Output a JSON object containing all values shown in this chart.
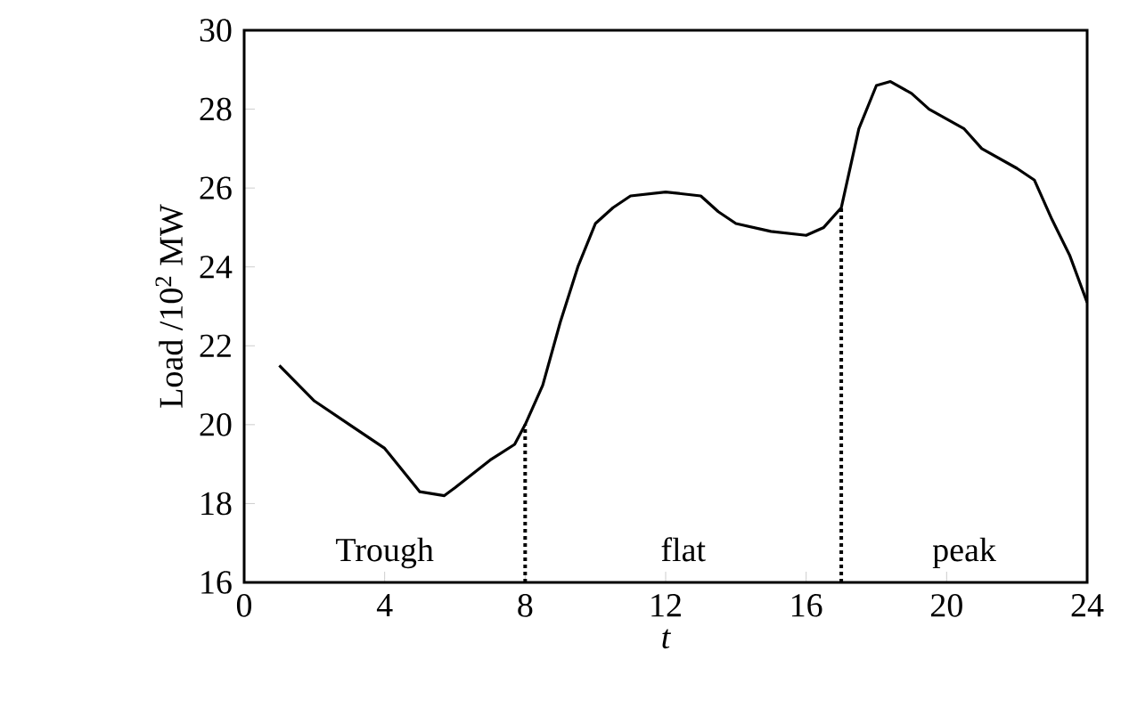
{
  "chart_data": {
    "type": "line",
    "xlabel": "t",
    "ylabel": "Load /10$^{2}$ MW",
    "xlim": [
      0,
      24
    ],
    "ylim": [
      16,
      30
    ],
    "xticks": [
      0,
      4,
      8,
      12,
      16,
      20,
      24
    ],
    "yticks": [
      16,
      18,
      20,
      22,
      24,
      26,
      28,
      30
    ],
    "x": [
      1,
      2,
      3,
      4,
      5,
      5.7,
      6,
      7,
      7.7,
      8,
      8.5,
      9,
      9.5,
      10,
      10.5,
      11,
      12,
      13,
      13.5,
      14,
      15,
      16,
      16.5,
      17,
      17.5,
      18,
      18.4,
      19,
      19.5,
      20.5,
      21,
      22,
      22.5,
      23,
      23.5,
      24
    ],
    "series": [
      {
        "color": "#000000",
        "values": [
          21.5,
          20.6,
          20.0,
          19.4,
          18.3,
          18.2,
          18.4,
          19.1,
          19.5,
          20.0,
          21.0,
          22.6,
          24.0,
          25.1,
          25.5,
          25.8,
          25.9,
          25.8,
          25.4,
          25.1,
          24.9,
          24.8,
          25.0,
          25.5,
          27.5,
          28.6,
          28.7,
          28.4,
          28.0,
          27.5,
          27.0,
          26.5,
          26.2,
          25.2,
          24.3,
          23.1
        ]
      }
    ],
    "ref_lines": [
      {
        "axis": "x",
        "value": 8,
        "line_style": "dotted"
      },
      {
        "axis": "x",
        "value": 17,
        "line_style": "dotted"
      }
    ],
    "annotations": [
      "Trough",
      "flat",
      "peak"
    ],
    "marker": "none",
    "line_style": "solid"
  }
}
